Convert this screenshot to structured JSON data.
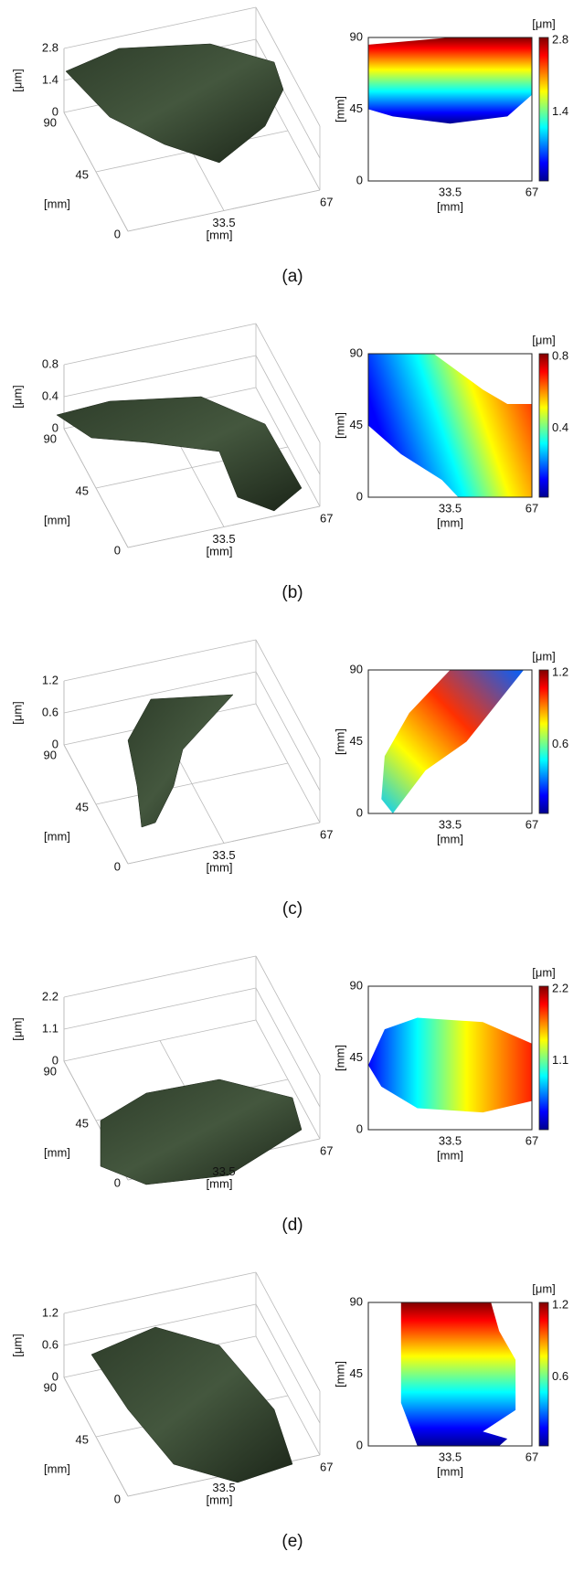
{
  "panels": [
    {
      "label": "(a)",
      "surface": {
        "z_label": "[μm]",
        "z_ticks": [
          "2.8",
          "1.4",
          "0"
        ],
        "y_ticks": [
          "90",
          "45",
          "0"
        ],
        "y_label": "[mm]",
        "x_ticks": [
          "33.5",
          "67"
        ],
        "x_label": "[mm]"
      },
      "map": {
        "y_label": "[mm]",
        "y_ticks": [
          "90",
          "45",
          "0"
        ],
        "x_ticks": [
          "33.5",
          "67"
        ],
        "x_label": "[mm]",
        "colorbar_label": "[μm]",
        "colorbar_ticks": [
          "2.8",
          "1.4"
        ]
      }
    },
    {
      "label": "(b)",
      "surface": {
        "z_label": "[μm]",
        "z_ticks": [
          "0.8",
          "0.4",
          "0"
        ],
        "y_ticks": [
          "90",
          "45",
          "0"
        ],
        "y_label": "[mm]",
        "x_ticks": [
          "33.5",
          "67"
        ],
        "x_label": "[mm]"
      },
      "map": {
        "y_label": "[mm]",
        "y_ticks": [
          "90",
          "45",
          "0"
        ],
        "x_ticks": [
          "33.5",
          "67"
        ],
        "x_label": "[mm]",
        "colorbar_label": "[μm]",
        "colorbar_ticks": [
          "0.8",
          "0.4"
        ]
      }
    },
    {
      "label": "(c)",
      "surface": {
        "z_label": "[μm]",
        "z_ticks": [
          "1.2",
          "0.6",
          "0"
        ],
        "y_ticks": [
          "90",
          "45",
          "0"
        ],
        "y_label": "[mm]",
        "x_ticks": [
          "33.5",
          "67"
        ],
        "x_label": "[mm]"
      },
      "map": {
        "y_label": "[mm]",
        "y_ticks": [
          "90",
          "45",
          "0"
        ],
        "x_ticks": [
          "33.5",
          "67"
        ],
        "x_label": "[mm]",
        "colorbar_label": "[μm]",
        "colorbar_ticks": [
          "1.2",
          "0.6"
        ]
      }
    },
    {
      "label": "(d)",
      "surface": {
        "z_label": "[μm]",
        "z_ticks": [
          "2.2",
          "1.1",
          "0"
        ],
        "y_ticks": [
          "90",
          "45",
          "0"
        ],
        "y_label": "[mm]",
        "x_ticks": [
          "33.5",
          "67"
        ],
        "x_label": "[mm]"
      },
      "map": {
        "y_label": "[mm]",
        "y_ticks": [
          "90",
          "45",
          "0"
        ],
        "x_ticks": [
          "33.5",
          "67"
        ],
        "x_label": "[mm]",
        "colorbar_label": "[μm]",
        "colorbar_ticks": [
          "2.2",
          "1.1"
        ]
      }
    },
    {
      "label": "(e)",
      "surface": {
        "z_label": "[μm]",
        "z_ticks": [
          "1.2",
          "0.6",
          "0"
        ],
        "y_ticks": [
          "90",
          "45",
          "0"
        ],
        "y_label": "[mm]",
        "x_ticks": [
          "33.5",
          "67"
        ],
        "x_label": "[mm]"
      },
      "map": {
        "y_label": "[mm]",
        "y_ticks": [
          "90",
          "45",
          "0"
        ],
        "x_ticks": [
          "33.5",
          "67"
        ],
        "x_label": "[mm]",
        "colorbar_label": "[μm]",
        "colorbar_ticks": [
          "1.2",
          "0.6"
        ]
      }
    }
  ]
}
